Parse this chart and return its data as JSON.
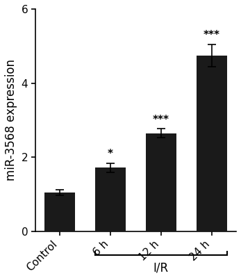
{
  "categories": [
    "Control",
    "6 h",
    "12 h",
    "24 h"
  ],
  "values": [
    1.05,
    1.72,
    2.65,
    4.75
  ],
  "errors": [
    0.08,
    0.12,
    0.12,
    0.3
  ],
  "bar_color": "#1a1a1a",
  "bar_width": 0.6,
  "ylabel": "miR-3568 expression",
  "ylim": [
    0,
    6
  ],
  "yticks": [
    0,
    2,
    4,
    6
  ],
  "significance": [
    "",
    "*",
    "***",
    "***"
  ],
  "ir_label": "I/R",
  "background_color": "#ffffff",
  "tick_fontsize": 11,
  "label_fontsize": 12,
  "sig_fontsize": 11,
  "label_rotation": 45
}
